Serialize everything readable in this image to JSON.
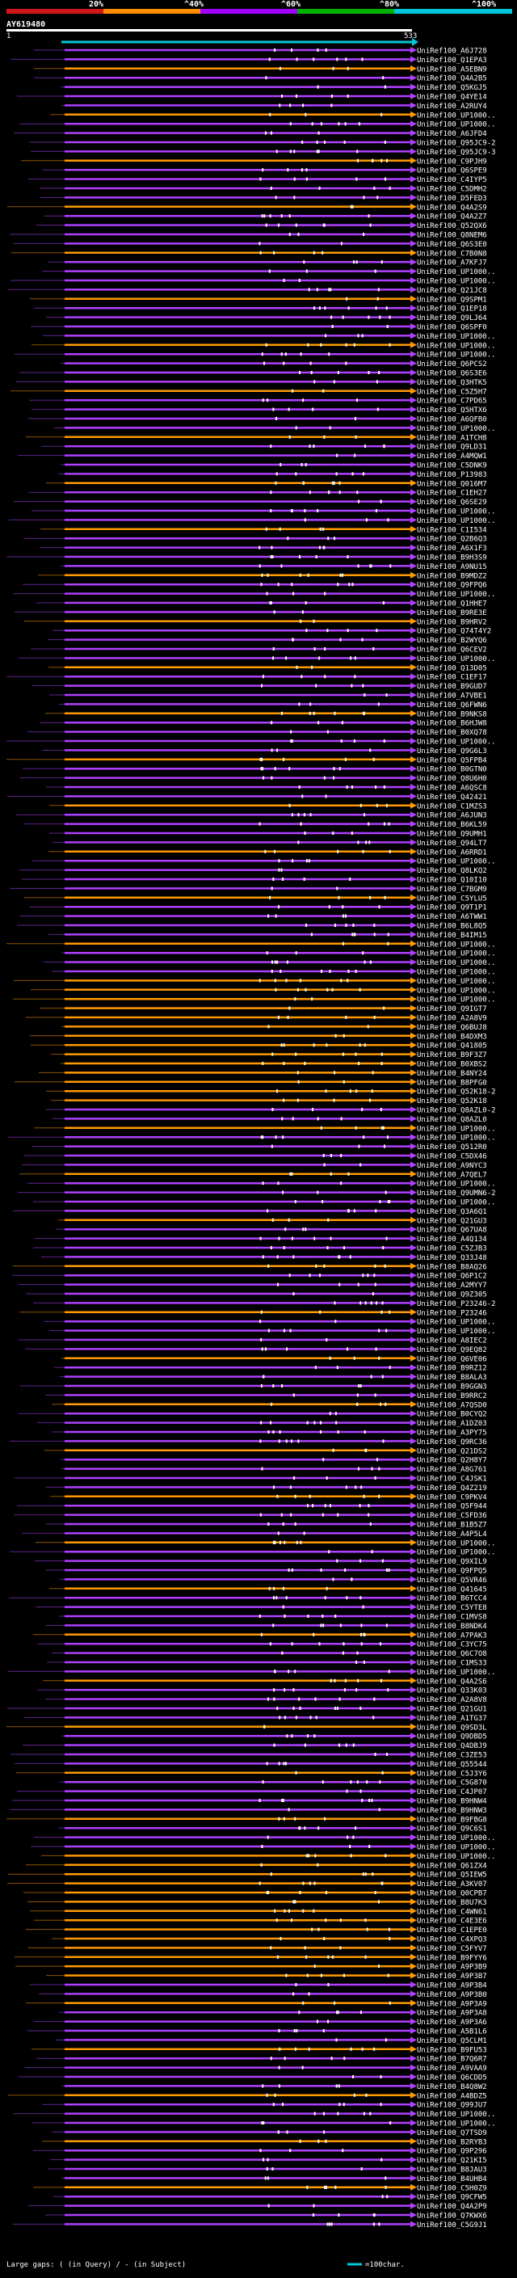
{
  "query_id": "AY619480",
  "axis": {
    "start": "1",
    "end": "533"
  },
  "scale": {
    "p20": "20%",
    "p40": "^40%",
    "p60": "^60%",
    "p80": "^80%",
    "p100": "^100%"
  },
  "colors": {
    "c1": "#d01818",
    "c2": "#ff8c00",
    "c3": "#a000ff",
    "c4": "#00b000",
    "c5": "#00c8d8",
    "bg": "#000000"
  },
  "footer": {
    "left": "Large gaps: ( (in Query) / - (in Subject)",
    "right": "=100char."
  },
  "chart_data": {
    "type": "alignment",
    "query_length": 533,
    "hits": [
      "UniRef100_A6J728",
      "UniRef100_Q1EPA3",
      "UniRef100_A5EBN9",
      "UniRef100_Q4A2B5",
      "UniRef100_Q5KGJ5",
      "UniRef100_Q4YE14",
      "UniRef100_A2RUY4",
      "UniRef100_UP1000..",
      "UniRef100_UP1000..",
      "UniRef100_A6JFD4",
      "UniRef100_Q95JC9-2",
      "UniRef100_Q95JC9-3",
      "UniRef100_C9PJH9",
      "UniRef100_Q6SPE9",
      "UniRef100_C4IYP5",
      "UniRef100_C5DMH2",
      "UniRef100_D5FED3",
      "UniRef100_Q4A2S9",
      "UniRef100_Q4A2Z7",
      "UniRef100_Q52QX6",
      "UniRef100_Q8NEM6",
      "UniRef100_Q6S3E0",
      "UniRef100_C7B0N8",
      "UniRef100_A7KFJ7",
      "UniRef100_UP1000..",
      "UniRef100_UP1000..",
      "UniRef100_Q21JC8",
      "UniRef100_Q9SPM1",
      "UniRef100_Q1EP18",
      "UniRef100_Q9LJ64",
      "UniRef100_Q6SPF0",
      "UniRef100_UP1000..",
      "UniRef100_UP1000..",
      "UniRef100_UP1000..",
      "UniRef100_Q6PCS2",
      "UniRef100_Q6S3E6",
      "UniRef100_Q3HTK5",
      "UniRef100_C5Z5H7",
      "UniRef100_C7PD65",
      "UniRef100_Q5HTX6",
      "UniRef100_A6QFB0",
      "UniRef100_UP1000..",
      "UniRef100_A1TCH8",
      "UniRef100_Q9LD31",
      "UniRef100_A4MQW1",
      "UniRef100_C5DNK9",
      "UniRef100_P13983",
      "UniRef100_Q016M7",
      "UniRef100_C1EH27",
      "UniRef100_Q6SE29",
      "UniRef100_UP1000..",
      "UniRef100_UP1000..",
      "UniRef100_C1I534",
      "UniRef100_Q2B6Q3",
      "UniRef100_A6X1F3",
      "UniRef100_B9H3S9",
      "UniRef100_A9NU15",
      "UniRef100_B9MDZ2",
      "UniRef100_Q9FPQ6",
      "UniRef100_UP1000..",
      "UniRef100_Q1HHE7",
      "UniRef100_B9RE3E",
      "UniRef100_B9HRV2",
      "UniRef100_Q74T4Y2",
      "UniRef100_B2WYQ6",
      "UniRef100_Q6CEV2",
      "UniRef100_UP1000..",
      "UniRef100_Q13D05",
      "UniRef100_C1EF17",
      "UniRef100_B9GUD7",
      "UniRef100_A7VBE1",
      "UniRef100_Q6FWN6",
      "UniRef100_B9NKS8",
      "UniRef100_B6HJW8",
      "UniRef100_B0XQ78",
      "UniRef100_UP1000..",
      "UniRef100_Q9G6L3",
      "UniRef100_Q5FPB4",
      "UniRef100_B0GTN0",
      "UniRef100_Q8U6H0",
      "UniRef100_A6QSC8",
      "UniRef100_Q42421",
      "UniRef100_C1MZS3",
      "UniRef100_A6JUN3",
      "UniRef100_B6KL59",
      "UniRef100_Q9UMH1",
      "UniRef100_Q94LT7",
      "UniRef100_A6RRD1",
      "UniRef100_UP1000..",
      "UniRef100_Q8LKQ2",
      "UniRef100_Q10I10",
      "UniRef100_C7BGM9",
      "UniRef100_C5YLU5",
      "UniRef100_Q9T1P1",
      "UniRef100_A6TWW1",
      "UniRef100_B6L8Q5",
      "UniRef100_B4IM15",
      "UniRef100_UP1000..",
      "UniRef100_UP1000..",
      "UniRef100_UP1000..",
      "UniRef100_UP1000..",
      "UniRef100_UP1000..",
      "UniRef100_UP1000..",
      "UniRef100_UP1000..",
      "UniRef100_Q9IGT7",
      "UniRef100_A2A8V9",
      "UniRef100_Q6BUJ8",
      "UniRef100_B4DXM3",
      "UniRef100_Q41805",
      "UniRef100_B9F3Z7",
      "UniRef100_B0XBS2",
      "UniRef100_B4NY24",
      "UniRef100_B8PFG0",
      "UniRef100_Q52K18-2",
      "UniRef100_Q52K18",
      "UniRef100_Q8AZL0-2",
      "UniRef100_Q8AZL0",
      "UniRef100_UP1000..",
      "UniRef100_UP1000..",
      "UniRef100_Q512R0",
      "UniRef100_C5DX46",
      "UniRef100_A9NYC3",
      "UniRef100_A7QEL7",
      "UniRef100_UP1000..",
      "UniRef100_Q9UMN6-2",
      "UniRef100_UP1000..",
      "UniRef100_Q3A6Q1",
      "UniRef100_Q21GU3",
      "UniRef100_Q67UA8",
      "UniRef100_A4Q134",
      "UniRef100_C5ZJB3",
      "UniRef100_Q33J48",
      "UniRef100_B8AQ26",
      "UniRef100_Q6P1C2",
      "UniRef100_A2MYY7",
      "UniRef100_Q9Z305",
      "UniRef100_P23246-2",
      "UniRef100_P23246",
      "UniRef100_UP1000..",
      "UniRef100_UP1000..",
      "UniRef100_A8IEC2",
      "UniRef100_Q9EQ82",
      "UniRef100_Q6VE06",
      "UniRef100_B9RZ12",
      "UniRef100_B8ALA3",
      "UniRef100_B9GGN3",
      "UniRef100_B9RRC2",
      "UniRef100_A7QSD0",
      "UniRef100_B0CYQ2",
      "UniRef100_A1DZ03",
      "UniRef100_A3PY75",
      "UniRef100_Q9RC36",
      "UniRef100_Q21DS2",
      "UniRef100_Q2H8Y7",
      "UniRef100_A8G761",
      "UniRef100_C4JSK1",
      "UniRef100_Q4Z219",
      "UniRef100_C9PKV4",
      "UniRef100_Q5F944",
      "UniRef100_C5FD36",
      "UniRef100_B1B5Z7",
      "UniRef100_A4P5L4",
      "UniRef100_UP1000..",
      "UniRef100_UP1000..",
      "UniRef100_Q9XIL9",
      "UniRef100_Q9FPQ5",
      "UniRef100_Q5VR46",
      "UniRef100_Q41645",
      "UniRef100_B6TCC4",
      "UniRef100_C5YTE8",
      "UniRef100_C1MVS8",
      "UniRef100_B8NDK4",
      "UniRef100_A7PAK3",
      "UniRef100_C3YC75",
      "UniRef100_Q6C7O8",
      "UniRef100_C1MS33",
      "UniRef100_UP1000..",
      "UniRef100_Q4A2S6",
      "UniRef100_Q33K03",
      "UniRef100_A2A8V8",
      "UniRef100_Q21GU1",
      "UniRef100_A1TG37",
      "UniRef100_Q9SD3L",
      "UniRef100_Q9DBD5",
      "UniRef100_Q4DBJ9",
      "UniRef100_C3ZE53",
      "UniRef100_Q55544",
      "UniRef100_C5J3Y6",
      "UniRef100_C5G870",
      "UniRef100_C4JP07",
      "UniRef100_B9HNW4",
      "UniRef100_B9HNW3",
      "UniRef100_B9FBG8",
      "UniRef100_Q9C6S1",
      "UniRef100_UP1000..",
      "UniRef100_UP1000..",
      "UniRef100_UP1000..",
      "UniRef100_Q61ZX4",
      "UniRef100_Q5IEW5",
      "UniRef100_A3KV07",
      "UniRef100_Q0CPB7",
      "UniRef100_B8U7K3",
      "UniRef100_C4WN61",
      "UniRef100_C4E3E6",
      "UniRef100_C1EPE0",
      "UniRef100_C4XPQ3",
      "UniRef100_C5FYV7",
      "UniRef100_B9FYY6",
      "UniRef100_A9P3B9",
      "UniRef100_A9P3B7",
      "UniRef100_A9P3B4",
      "UniRef100_A9P3B0",
      "UniRef100_A9P3A9",
      "UniRef100_A9P3A8",
      "UniRef100_A9P3A6",
      "UniRef100_A5B1L6",
      "UniRef100_Q5CLM1",
      "UniRef100_B9FU53",
      "UniRef100_B7Q6R7",
      "UniRef100_A9VAA9",
      "UniRef100_Q6CDD5",
      "UniRef100_B4Q8W2",
      "UniRef100_A4BDZ5",
      "UniRef100_Q99JU7",
      "UniRef100_UP1000..",
      "UniRef100_UP1000..",
      "UniRef100_Q7TSD9",
      "UniRef100_B2RYB3",
      "UniRef100_Q9P296",
      "UniRef100_Q21KI5",
      "UniRef100_B8JAU3",
      "UniRef100_B4UHB4",
      "UniRef100_C5H0Z9",
      "UniRef100_Q9CFW5",
      "UniRef100_Q4A2P9",
      "UniRef100_Q7KWX6",
      "UniRef100_C5G9J1"
    ]
  }
}
